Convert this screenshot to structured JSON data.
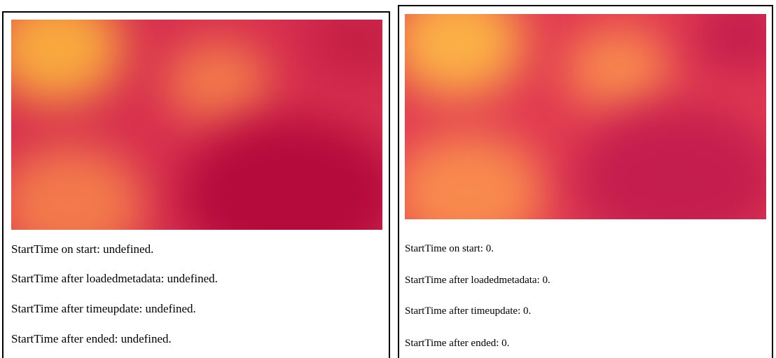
{
  "panels": [
    {
      "id": "left",
      "video": {
        "base_color": "#d8304f",
        "colors": [
          "#f8a93f",
          "#f27a4b",
          "#b40a3c",
          "#c51f45",
          "#e64a52"
        ]
      },
      "lines": [
        "StartTime on start: undefined.",
        "StartTime after loadedmetadata: undefined.",
        "StartTime after timeupdate: undefined.",
        "StartTime after ended: undefined."
      ]
    },
    {
      "id": "right",
      "video": {
        "base_color": "#e23b52",
        "colors": [
          "#fbb046",
          "#f88a4e",
          "#c41e4e",
          "#ff6a4f",
          "#ea3d50"
        ]
      },
      "lines": [
        "StartTime on start: 0.",
        "StartTime after loadedmetadata: 0.",
        "StartTime after timeupdate: 0.",
        "StartTime after ended: 0."
      ]
    }
  ]
}
